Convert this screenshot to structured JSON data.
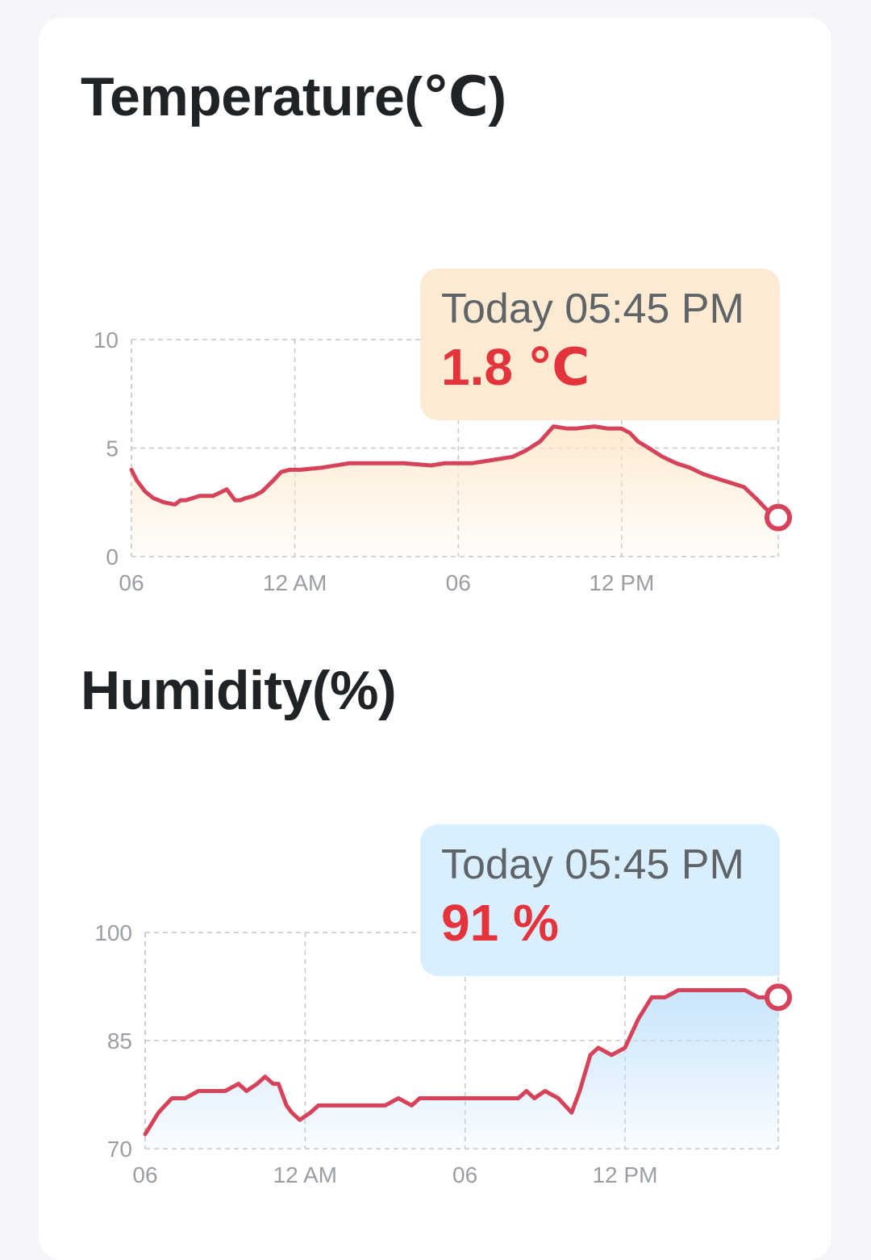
{
  "charts": {
    "temperature": {
      "title": "Temperature(℃)",
      "tooltip": {
        "time": "Today 05:45 PM",
        "value": "1.8 ℃"
      }
    },
    "humidity": {
      "title": "Humidity(%)",
      "tooltip": {
        "time": "Today 05:45 PM",
        "value": "91 %"
      }
    }
  },
  "colors": {
    "line": "#d6425a",
    "temperature_fill": "#fde7c9",
    "humidity_fill": "#bfe0fb",
    "grid": "#c4c7cb"
  },
  "chart_data": [
    {
      "type": "area",
      "title": "Temperature(℃)",
      "xlabel": "",
      "ylabel": "",
      "x_unit": "hours since the 06 tick (06:00)",
      "x_ticks": [
        {
          "x": 0,
          "label": "06"
        },
        {
          "x": 6,
          "label": "12 AM"
        },
        {
          "x": 12,
          "label": "06"
        },
        {
          "x": 18,
          "label": "12 PM"
        }
      ],
      "xlim": [
        0,
        23.75
      ],
      "y_ticks": [
        0,
        5,
        10
      ],
      "ylim": [
        0,
        10
      ],
      "grid": true,
      "series": [
        {
          "x": [
            0,
            0.2,
            0.5,
            0.8,
            1.2,
            1.6,
            1.8,
            2.0,
            2.5,
            3.0,
            3.5,
            3.8,
            4.0,
            4.2,
            4.5,
            4.8,
            5.2,
            5.5,
            5.8,
            6.0,
            6.2,
            7.0,
            8.0,
            8.5,
            9.0,
            10.0,
            11.0,
            11.5,
            12.0,
            12.5,
            13.0,
            14.0,
            14.5,
            15.0,
            15.5,
            16.0,
            16.3,
            17.0,
            17.5,
            18.0,
            18.3,
            18.6,
            19.0,
            19.5,
            20.0,
            20.5,
            21.0,
            21.5,
            22.0,
            22.5,
            23.0,
            23.3,
            23.75
          ],
          "y": [
            4.0,
            3.5,
            3.0,
            2.7,
            2.5,
            2.4,
            2.6,
            2.6,
            2.8,
            2.8,
            3.1,
            2.6,
            2.6,
            2.7,
            2.8,
            3.0,
            3.5,
            3.9,
            4.0,
            4.0,
            4.0,
            4.1,
            4.3,
            4.3,
            4.3,
            4.3,
            4.2,
            4.3,
            4.3,
            4.3,
            4.4,
            4.6,
            4.9,
            5.3,
            6.0,
            5.9,
            5.9,
            6.0,
            5.9,
            5.9,
            5.7,
            5.3,
            5.0,
            4.6,
            4.3,
            4.1,
            3.8,
            3.6,
            3.4,
            3.2,
            2.6,
            2.2,
            1.8
          ]
        }
      ]
    },
    {
      "type": "area",
      "title": "Humidity(%)",
      "xlabel": "",
      "ylabel": "",
      "x_unit": "hours since the 06 tick (06:00)",
      "x_ticks": [
        {
          "x": 0,
          "label": "06"
        },
        {
          "x": 6,
          "label": "12 AM"
        },
        {
          "x": 12,
          "label": "06"
        },
        {
          "x": 18,
          "label": "12 PM"
        }
      ],
      "xlim": [
        0,
        23.75
      ],
      "y_ticks": [
        70,
        85,
        100
      ],
      "ylim": [
        70,
        100
      ],
      "grid": true,
      "series": [
        {
          "x": [
            0,
            0.5,
            1.0,
            1.5,
            2.0,
            2.5,
            3.0,
            3.5,
            3.8,
            4.2,
            4.5,
            4.8,
            5.0,
            5.3,
            5.5,
            5.8,
            6.2,
            6.5,
            7.0,
            8.0,
            9.0,
            9.5,
            10.0,
            10.3,
            11.0,
            12.0,
            13.0,
            14.0,
            14.3,
            14.6,
            15.0,
            15.5,
            16.0,
            16.3,
            16.7,
            17.0,
            17.5,
            18.0,
            18.5,
            19.0,
            19.5,
            20.0,
            21.0,
            22.0,
            22.5,
            23.0,
            23.75
          ],
          "y": [
            72,
            75,
            77,
            77,
            78,
            78,
            78,
            79,
            78,
            79,
            80,
            79,
            79,
            76,
            75,
            74,
            75,
            76,
            76,
            76,
            76,
            77,
            76,
            77,
            77,
            77,
            77,
            77,
            78,
            77,
            78,
            77,
            75,
            78,
            83,
            84,
            83,
            84,
            88,
            91,
            91,
            92,
            92,
            92,
            92,
            91,
            91
          ]
        }
      ]
    }
  ]
}
